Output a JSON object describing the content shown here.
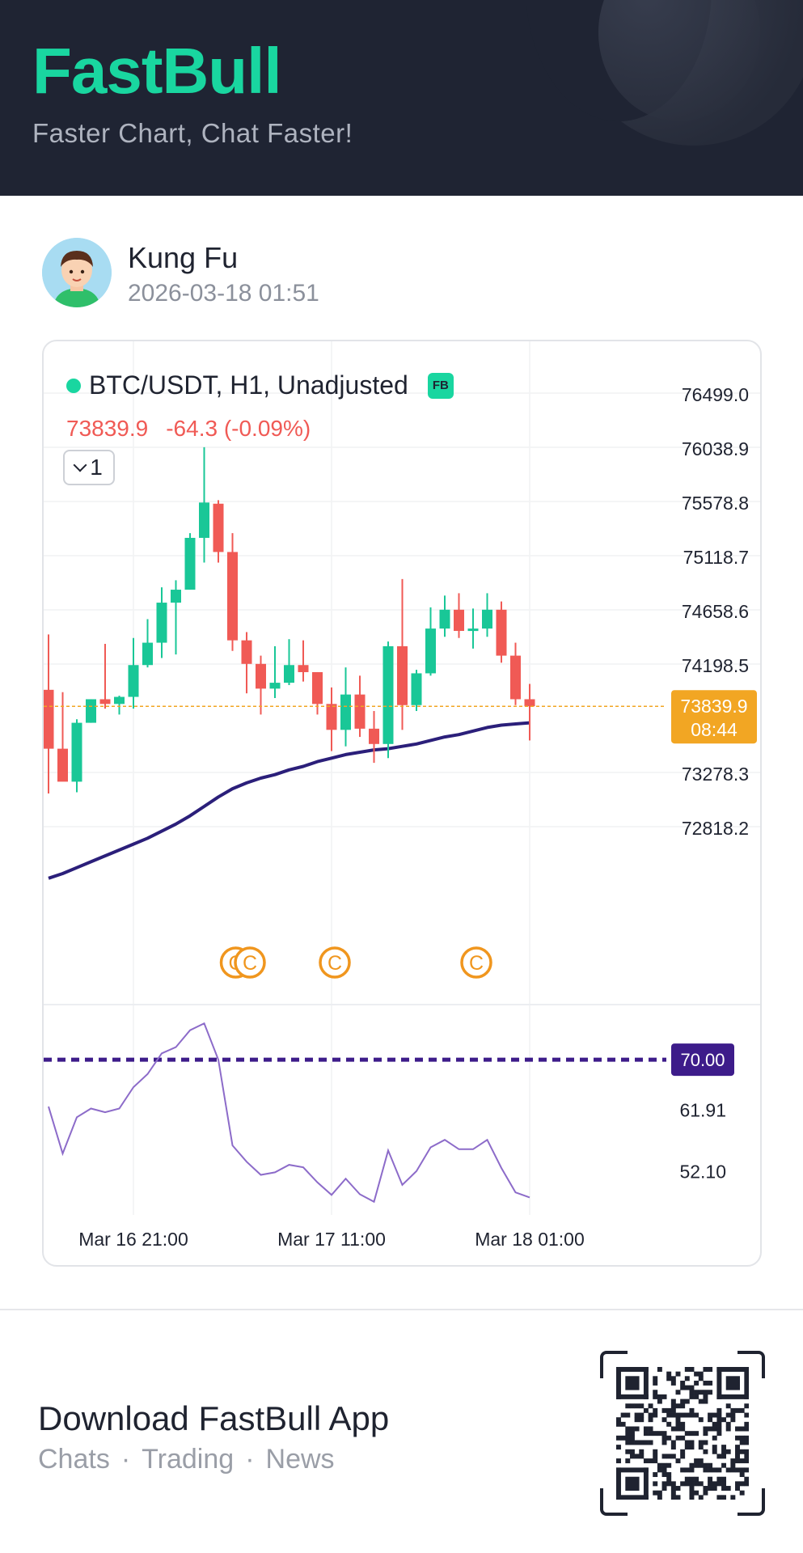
{
  "header": {
    "brand": "FastBull",
    "tagline": "Faster Chart, Chat Faster!"
  },
  "post": {
    "username": "Kung Fu",
    "timestamp": "2026-03-18 01:51"
  },
  "chart_header": {
    "symbol": "BTC/USDT, H1, Unadjusted",
    "badge": "FB",
    "last_price": "73839.9",
    "change": "-64.3 (-0.09%)",
    "indicator_count": "1"
  },
  "colors": {
    "up": "#19c797",
    "down": "#f05a55",
    "ma": "#2b1f7a",
    "rsi": "#8c6bc9",
    "rsi_level": "#3d1c8a",
    "price_tag": "#f2a623",
    "marker": "#f0961e"
  },
  "chart_data": {
    "type": "candlestick",
    "x_labels": [
      "Mar 16 21:00",
      "Mar 17 11:00",
      "Mar 18 01:00"
    ],
    "y_ticks": [
      76499.0,
      76038.9,
      75578.8,
      75118.7,
      74658.6,
      74198.5,
      73278.3,
      72818.2
    ],
    "y_tick_labels": [
      "76499.0",
      "76038.9",
      "75578.8",
      "75118.7",
      "74658.6",
      "74198.5",
      "73278.3",
      "72818.2"
    ],
    "ylim": [
      72500,
      76650
    ],
    "current_price": 73839.9,
    "current_price_label": "73839.9",
    "countdown_label": "08:44",
    "candles": [
      {
        "o": 73980,
        "h": 74450,
        "l": 73100,
        "c": 73480
      },
      {
        "o": 73480,
        "h": 73960,
        "l": 73240,
        "c": 73200
      },
      {
        "o": 73200,
        "h": 73730,
        "l": 73110,
        "c": 73700
      },
      {
        "o": 73700,
        "h": 73900,
        "l": 73700,
        "c": 73900
      },
      {
        "o": 73900,
        "h": 74370,
        "l": 73820,
        "c": 73860
      },
      {
        "o": 73860,
        "h": 73930,
        "l": 73770,
        "c": 73920
      },
      {
        "o": 73920,
        "h": 74420,
        "l": 73820,
        "c": 74190
      },
      {
        "o": 74190,
        "h": 74580,
        "l": 74170,
        "c": 74380
      },
      {
        "o": 74380,
        "h": 74850,
        "l": 74250,
        "c": 74720
      },
      {
        "o": 74720,
        "h": 74910,
        "l": 74280,
        "c": 74830
      },
      {
        "o": 74830,
        "h": 75310,
        "l": 74830,
        "c": 75270
      },
      {
        "o": 75270,
        "h": 76040,
        "l": 75060,
        "c": 75570
      },
      {
        "o": 75560,
        "h": 75590,
        "l": 75060,
        "c": 75150
      },
      {
        "o": 75150,
        "h": 75310,
        "l": 74310,
        "c": 74400
      },
      {
        "o": 74400,
        "h": 74470,
        "l": 73950,
        "c": 74200
      },
      {
        "o": 74200,
        "h": 74270,
        "l": 73770,
        "c": 73990
      },
      {
        "o": 73990,
        "h": 74350,
        "l": 73910,
        "c": 74040
      },
      {
        "o": 74040,
        "h": 74410,
        "l": 74020,
        "c": 74190
      },
      {
        "o": 74190,
        "h": 74400,
        "l": 74050,
        "c": 74130
      },
      {
        "o": 74130,
        "h": 74130,
        "l": 73770,
        "c": 73860
      },
      {
        "o": 73860,
        "h": 74000,
        "l": 73460,
        "c": 73640
      },
      {
        "o": 73640,
        "h": 74170,
        "l": 73500,
        "c": 73940
      },
      {
        "o": 73940,
        "h": 74100,
        "l": 73580,
        "c": 73650
      },
      {
        "o": 73650,
        "h": 73800,
        "l": 73360,
        "c": 73520
      },
      {
        "o": 73520,
        "h": 74390,
        "l": 73400,
        "c": 74350
      },
      {
        "o": 74350,
        "h": 74920,
        "l": 73640,
        "c": 73850
      },
      {
        "o": 73850,
        "h": 74150,
        "l": 73800,
        "c": 74120
      },
      {
        "o": 74120,
        "h": 74680,
        "l": 74100,
        "c": 74500
      },
      {
        "o": 74500,
        "h": 74780,
        "l": 74430,
        "c": 74660
      },
      {
        "o": 74660,
        "h": 74800,
        "l": 74420,
        "c": 74480
      },
      {
        "o": 74480,
        "h": 74670,
        "l": 74330,
        "c": 74500
      },
      {
        "o": 74500,
        "h": 74800,
        "l": 74430,
        "c": 74660
      },
      {
        "o": 74660,
        "h": 74730,
        "l": 74210,
        "c": 74270
      },
      {
        "o": 74270,
        "h": 74380,
        "l": 73850,
        "c": 73900
      },
      {
        "o": 73900,
        "h": 74030,
        "l": 73550,
        "c": 73840
      }
    ],
    "ma_series": [
      72380,
      72420,
      72470,
      72520,
      72570,
      72620,
      72670,
      72720,
      72780,
      72840,
      72910,
      72990,
      73070,
      73140,
      73190,
      73230,
      73260,
      73300,
      73330,
      73370,
      73400,
      73430,
      73450,
      73470,
      73480,
      73500,
      73520,
      73550,
      73580,
      73600,
      73630,
      73660,
      73680,
      73690,
      73700
    ],
    "markers": [
      {
        "index": 13,
        "label": "C"
      },
      {
        "index": 14,
        "label": "C"
      },
      {
        "index": 20,
        "label": "C"
      },
      {
        "index": 30,
        "label": "C"
      }
    ],
    "rsi": {
      "values": [
        62.5,
        55.0,
        60.8,
        62.2,
        61.6,
        62.2,
        65.6,
        67.7,
        71.0,
        72.0,
        74.7,
        75.8,
        70.0,
        56.3,
        53.7,
        51.6,
        52.0,
        53.2,
        52.8,
        50.4,
        48.4,
        51.0,
        48.5,
        47.3,
        55.5,
        50.0,
        52.2,
        56.0,
        57.2,
        55.7,
        55.7,
        57.2,
        52.7,
        48.8,
        48.0
      ],
      "overbought": 70.0,
      "overbought_label": "70.00",
      "tick_labels": [
        "61.91",
        "52.10"
      ],
      "ticks": [
        61.91,
        52.1
      ],
      "ylim": [
        46.5,
        77.5
      ]
    }
  },
  "footer": {
    "title": "Download FastBull App",
    "sub_items": [
      "Chats",
      "Trading",
      "News"
    ],
    "separator": "·"
  }
}
